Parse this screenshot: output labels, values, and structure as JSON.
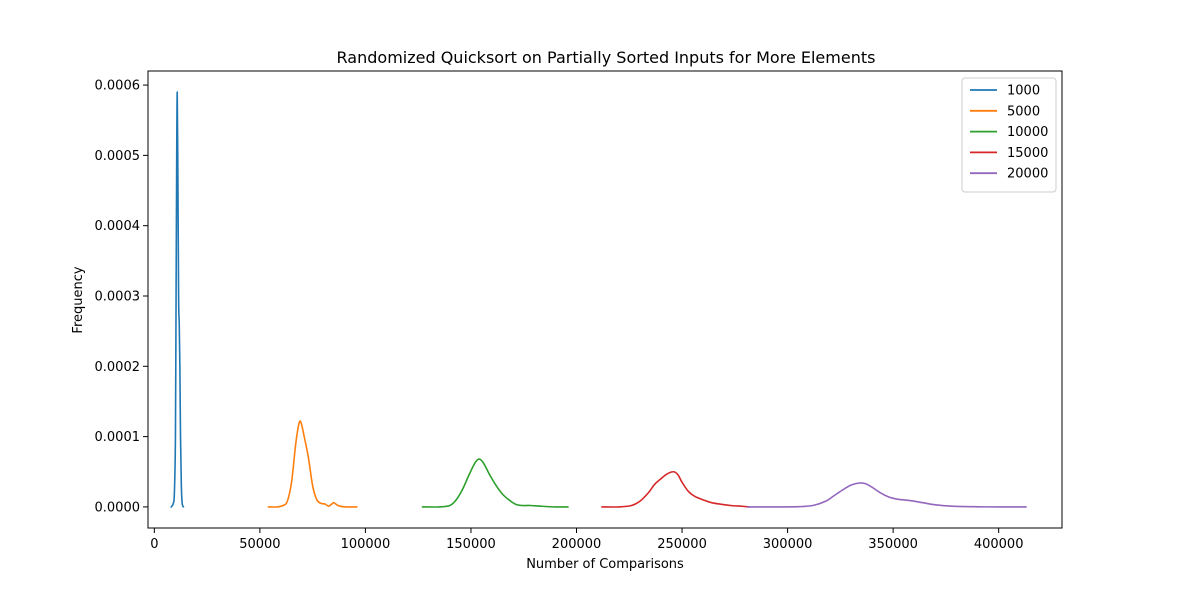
{
  "chart_data": {
    "type": "line",
    "title": "Randomized Quicksort on Partially Sorted Inputs for More Elements",
    "xlabel": "Number of Comparisons",
    "ylabel": "Frequency",
    "xlim": [
      -3000,
      430000
    ],
    "ylim": [
      -3e-05,
      0.00062
    ],
    "xticks": [
      0,
      50000,
      100000,
      150000,
      200000,
      250000,
      300000,
      350000,
      400000
    ],
    "xtick_labels": [
      "0",
      "50000",
      "100000",
      "150000",
      "200000",
      "250000",
      "300000",
      "350000",
      "400000"
    ],
    "yticks": [
      0,
      0.0001,
      0.0002,
      0.0003,
      0.0004,
      0.0005,
      0.0006
    ],
    "ytick_labels": [
      "0.0000",
      "0.0001",
      "0.0002",
      "0.0003",
      "0.0004",
      "0.0005",
      "0.0006"
    ],
    "grid": false,
    "legend_position": "top-right",
    "series": [
      {
        "name": "1000",
        "color": "#1f77b4",
        "points": [
          [
            8000,
            0
          ],
          [
            9000,
            5e-06
          ],
          [
            9500,
            2e-05
          ],
          [
            10000,
            0.0001
          ],
          [
            10300,
            0.0003
          ],
          [
            10600,
            0.0005
          ],
          [
            10850,
            0.00059
          ],
          [
            11100,
            0.0005
          ],
          [
            11500,
            0.0003
          ],
          [
            11800,
            0.00026
          ],
          [
            12100,
            0.0002
          ],
          [
            12400,
            0.0001
          ],
          [
            12800,
            3e-05
          ],
          [
            13200,
            5e-06
          ],
          [
            13800,
            0
          ]
        ]
      },
      {
        "name": "5000",
        "color": "#ff7f0e",
        "points": [
          [
            54000,
            0
          ],
          [
            58000,
            0
          ],
          [
            61000,
            2e-06
          ],
          [
            63000,
            8e-06
          ],
          [
            65000,
            3.5e-05
          ],
          [
            67000,
            9e-05
          ],
          [
            68500,
            0.000118
          ],
          [
            69500,
            0.00012
          ],
          [
            71000,
            0.0001
          ],
          [
            73000,
            7e-05
          ],
          [
            75000,
            3e-05
          ],
          [
            77000,
            1e-05
          ],
          [
            79000,
            5e-06
          ],
          [
            81000,
            4e-06
          ],
          [
            82500,
            1e-06
          ],
          [
            84000,
            4e-06
          ],
          [
            85000,
            6e-06
          ],
          [
            86500,
            3e-06
          ],
          [
            88000,
            1e-06
          ],
          [
            91000,
            0
          ],
          [
            96000,
            0
          ]
        ]
      },
      {
        "name": "10000",
        "color": "#2ca02c",
        "points": [
          [
            127000,
            0
          ],
          [
            135000,
            0
          ],
          [
            140000,
            2e-06
          ],
          [
            143000,
            1e-05
          ],
          [
            146000,
            2.5e-05
          ],
          [
            149000,
            4.5e-05
          ],
          [
            152000,
            6.3e-05
          ],
          [
            154000,
            6.8e-05
          ],
          [
            156000,
            6.2e-05
          ],
          [
            159000,
            4.5e-05
          ],
          [
            162000,
            3e-05
          ],
          [
            165000,
            1.8e-05
          ],
          [
            168000,
            1e-05
          ],
          [
            171000,
            4e-06
          ],
          [
            174000,
            2e-06
          ],
          [
            178000,
            2e-06
          ],
          [
            183000,
            1e-06
          ],
          [
            190000,
            0
          ],
          [
            196000,
            0
          ]
        ]
      },
      {
        "name": "15000",
        "color": "#d62728",
        "points": [
          [
            212000,
            0
          ],
          [
            220000,
            0
          ],
          [
            226000,
            2e-06
          ],
          [
            230000,
            8e-06
          ],
          [
            234000,
            2e-05
          ],
          [
            237000,
            3.2e-05
          ],
          [
            240000,
            4e-05
          ],
          [
            243000,
            4.7e-05
          ],
          [
            246000,
            5e-05
          ],
          [
            248000,
            4.6e-05
          ],
          [
            250000,
            3.5e-05
          ],
          [
            253000,
            2.2e-05
          ],
          [
            256000,
            1.5e-05
          ],
          [
            260000,
            1e-05
          ],
          [
            264000,
            6e-06
          ],
          [
            268000,
            4e-06
          ],
          [
            273000,
            2e-06
          ],
          [
            278000,
            1e-06
          ],
          [
            282000,
            0
          ]
        ]
      },
      {
        "name": "20000",
        "color": "#9467bd",
        "points": [
          [
            281000,
            0
          ],
          [
            295000,
            0
          ],
          [
            305000,
            3e-07
          ],
          [
            312000,
            2e-06
          ],
          [
            318000,
            8e-06
          ],
          [
            322000,
            1.6e-05
          ],
          [
            326000,
            2.4e-05
          ],
          [
            330000,
            3.1e-05
          ],
          [
            334000,
            3.4e-05
          ],
          [
            337000,
            3.3e-05
          ],
          [
            340000,
            2.8e-05
          ],
          [
            344000,
            2e-05
          ],
          [
            348000,
            1.4e-05
          ],
          [
            352000,
            1.1e-05
          ],
          [
            358000,
            9e-06
          ],
          [
            364000,
            6e-06
          ],
          [
            370000,
            3e-06
          ],
          [
            378000,
            1e-06
          ],
          [
            390000,
            2e-07
          ],
          [
            400000,
            0
          ],
          [
            413000,
            0
          ]
        ]
      }
    ]
  }
}
